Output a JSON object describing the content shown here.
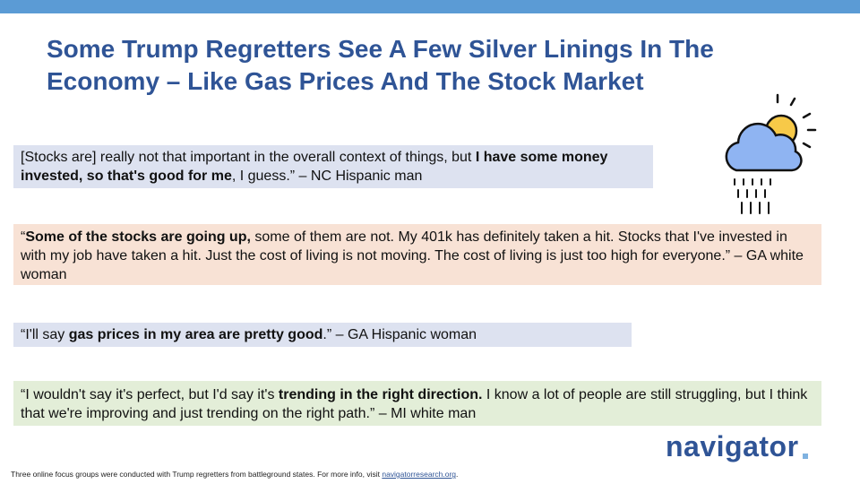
{
  "title": "Some Trump Regretters See A Few Silver Linings In The Economy – Like Gas Prices And The Stock Market",
  "quotes": [
    {
      "color": "#dde2f0",
      "segments": [
        {
          "text": "[Stocks are] really not that important in the overall context of things, but ",
          "bold": false
        },
        {
          "text": "I have some money invested, so that's good for me",
          "bold": true
        },
        {
          "text": ", I guess.” – NC Hispanic man",
          "bold": false
        }
      ]
    },
    {
      "color": "#f8e2d5",
      "segments": [
        {
          "text": "“",
          "bold": false
        },
        {
          "text": "Some of the stocks are going up,",
          "bold": true
        },
        {
          "text": " some of them are not. My 401k has definitely taken a hit. Stocks that I've invested in with my job have taken a hit. Just the cost of living is not moving. The cost of living is just too high for everyone.” – GA white woman",
          "bold": false
        }
      ]
    },
    {
      "color": "#dde2f0",
      "segments": [
        {
          "text": "“I'll say ",
          "bold": false
        },
        {
          "text": "gas prices in my area are pretty good",
          "bold": true
        },
        {
          "text": ".” – GA Hispanic woman",
          "bold": false
        }
      ]
    },
    {
      "color": "#e3eed8",
      "segments": [
        {
          "text": "“I wouldn't say it's perfect, but I'd say it's ",
          "bold": false
        },
        {
          "text": "trending in the right direction.",
          "bold": true
        },
        {
          "text": " I know a lot of people are still struggling, but I think that we're improving and just trending on the right path.” – MI white man",
          "bold": false
        }
      ]
    }
  ],
  "footer": [
    {
      "text": "Three online focus groups were conducted with Trump regretters from battleground states. For more info, visit ",
      "link": false
    },
    {
      "text": "navigatorresearch.org",
      "link": true
    },
    {
      "text": ".",
      "link": false
    }
  ],
  "logo": "navigator"
}
